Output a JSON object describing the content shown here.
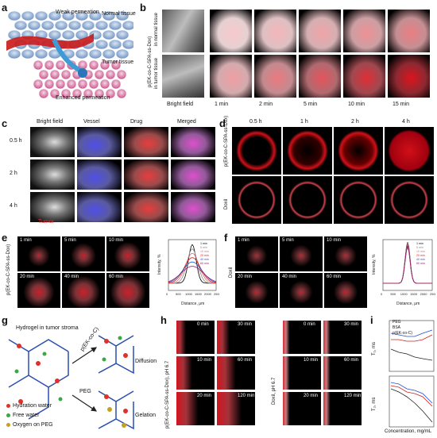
{
  "panels": {
    "a": {
      "label": "a",
      "weak": "Weak permeation",
      "normal": "Normal tissue",
      "tumor": "Tumor tissue",
      "enhanced": "Enhanced permeation"
    },
    "b": {
      "label": "b",
      "row1": "in normal tissue",
      "row2": "in tumor tissue",
      "side": "p(EK-co-C-SPA-ss-Dox)",
      "cols": [
        "Bright field",
        "1 min",
        "2 min",
        "5 min",
        "10 min",
        "15 min"
      ]
    },
    "c": {
      "label": "c",
      "cols": [
        "Bright field",
        "Vessel",
        "Drug",
        "Merged"
      ],
      "rows": [
        "0.5 h",
        "2 h",
        "4 h"
      ],
      "tumor": "Tumor"
    },
    "d": {
      "label": "d",
      "cols": [
        "0.5 h",
        "1 h",
        "2 h",
        "4 h"
      ],
      "row1": "p(EK-co-C-SPA-ss-Dox)",
      "row2": "Doxil"
    },
    "e": {
      "label": "e",
      "side": "p(EK-co-C-SPA-ss-Dox)",
      "times": [
        "1 min",
        "5 min",
        "10 min",
        "20 min",
        "40 min",
        "60 min"
      ],
      "ylabel": "Intensity, %",
      "xlabel": "Distance, μm",
      "xticks": [
        "0",
        "500",
        "1000",
        "1500",
        "2000",
        "2500"
      ]
    },
    "f": {
      "label": "f",
      "side": "Doxil",
      "times": [
        "1 min",
        "5 min",
        "10 min",
        "20 min",
        "40 min",
        "60 min"
      ],
      "ylabel": "Intensity, %",
      "xlabel": "Distance, μm",
      "xticks": [
        "0",
        "500",
        "1000",
        "1500",
        "2000",
        "2500"
      ]
    },
    "g": {
      "label": "g",
      "title": "Hydrogel in tumor stroma",
      "arrow1": "p(EK-co-C)",
      "arrow2": "PEG",
      "diffusion": "Diffusion",
      "gelation": "Gelation",
      "legend": [
        "Hydration water",
        "Free water",
        "Oxygen on PEG"
      ]
    },
    "h": {
      "label": "h",
      "side1": "p(EK-co-C-SPA-ss-Dox), pH 6.7",
      "side2": "Doxil, pH 6.7",
      "times": [
        "0 min",
        "30 min",
        "10 min",
        "60 min",
        "20 min",
        "120 min"
      ]
    },
    "i": {
      "label": "i",
      "legend": [
        "PEG",
        "BSA",
        "p(EK-co-C)"
      ],
      "y1": "T₁, ms",
      "y2": "T₂, ms",
      "xlabel": "Concentration, mg/mL"
    }
  },
  "colors": {
    "red": "#d0121c",
    "blue": "#2a2ad0"
  },
  "chart_data": [
    {
      "type": "line",
      "panel": "e",
      "title": "",
      "xlabel": "Distance, μm",
      "ylabel": "Intensity, %",
      "xlim": [
        0,
        2500
      ],
      "series": [
        {
          "name": "1 min",
          "color": "#000000"
        },
        {
          "name": "5 min",
          "color": "#888888"
        },
        {
          "name": "10 min",
          "color": "#e07070"
        },
        {
          "name": "20 min",
          "color": "#d02020"
        },
        {
          "name": "40 min",
          "color": "#2050d0"
        },
        {
          "name": "60 min",
          "color": "#a02060"
        }
      ]
    },
    {
      "type": "line",
      "panel": "f",
      "title": "",
      "xlabel": "Distance, μm",
      "ylabel": "Intensity, %",
      "xlim": [
        0,
        2500
      ],
      "series": [
        {
          "name": "1 min",
          "color": "#000000"
        },
        {
          "name": "5 min",
          "color": "#888888"
        },
        {
          "name": "10 min",
          "color": "#e07070"
        },
        {
          "name": "20 min",
          "color": "#d02020"
        },
        {
          "name": "40 min",
          "color": "#2050d0"
        },
        {
          "name": "60 min",
          "color": "#a02060"
        }
      ]
    }
  ]
}
